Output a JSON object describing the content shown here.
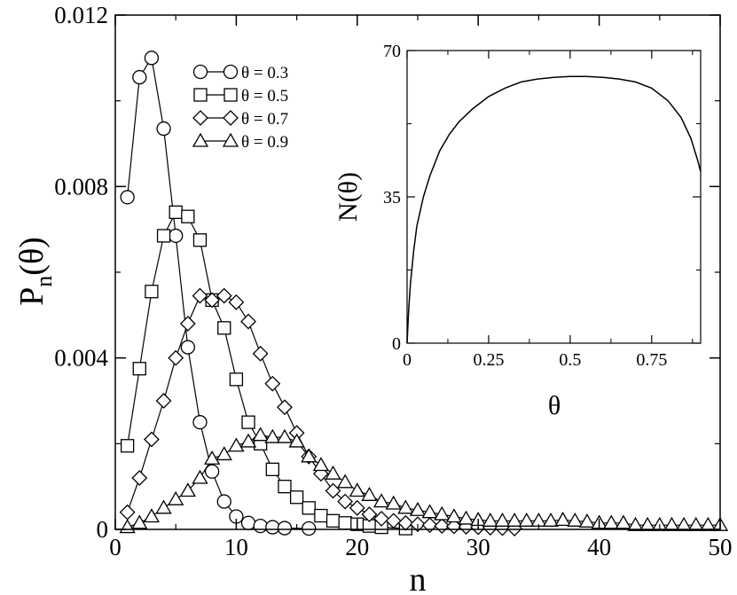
{
  "chart_data": [
    {
      "type": "line",
      "xlabel": "n",
      "ylabel": "P",
      "ylabel_sub": "n",
      "ylabel_arg": "(θ)",
      "xlim": [
        0,
        50
      ],
      "ylim": [
        0,
        0.012
      ],
      "xticks": [
        "0",
        "10",
        "20",
        "30",
        "40",
        "50"
      ],
      "yticks": [
        "0",
        "0.004",
        "0.008",
        "0.012"
      ],
      "grid": false,
      "legend_position": "top-center",
      "series": [
        {
          "name": "θ = 0.3",
          "marker": "circle",
          "x": [
            1,
            2,
            3,
            4,
            5,
            6,
            7,
            8,
            9,
            10,
            11,
            12,
            13,
            14,
            16
          ],
          "y": [
            0.00775,
            0.01055,
            0.011,
            0.00935,
            0.00685,
            0.00425,
            0.0025,
            0.00135,
            0.00065,
            0.0003,
            0.00015,
            8e-05,
            5e-05,
            3e-05,
            2e-05
          ]
        },
        {
          "name": "θ = 0.5",
          "marker": "square",
          "x": [
            1,
            2,
            3,
            4,
            5,
            6,
            7,
            8,
            9,
            10,
            11,
            12,
            13,
            14,
            15,
            16,
            17,
            18,
            19,
            20,
            21,
            22,
            24
          ],
          "y": [
            0.00195,
            0.00375,
            0.00555,
            0.00685,
            0.0074,
            0.0073,
            0.00675,
            0.00535,
            0.0047,
            0.0035,
            0.0025,
            0.002,
            0.0014,
            0.001,
            0.00075,
            0.0005,
            0.00032,
            0.0002,
            0.00015,
            0.00012,
            8e-05,
            5e-05,
            2e-05
          ]
        },
        {
          "name": "θ = 0.7",
          "marker": "diamond",
          "x": [
            1,
            2,
            3,
            4,
            5,
            6,
            7,
            8,
            9,
            10,
            11,
            12,
            13,
            14,
            15,
            16,
            17,
            18,
            19,
            20,
            21,
            22,
            23,
            24,
            25,
            26,
            27,
            28,
            29,
            30,
            31,
            32,
            33
          ],
          "y": [
            0.0004,
            0.0012,
            0.0021,
            0.003,
            0.004,
            0.0048,
            0.00545,
            0.00535,
            0.00545,
            0.0053,
            0.00485,
            0.0041,
            0.0034,
            0.00285,
            0.00225,
            0.0017,
            0.0013,
            0.0009,
            0.00065,
            0.0005,
            0.00035,
            0.00025,
            0.0002,
            0.00015,
            0.00012,
            0.0001,
            8e-05,
            7e-05,
            6e-05,
            5e-05,
            4e-05,
            3e-05,
            2e-05
          ]
        },
        {
          "name": "θ = 0.9",
          "marker": "triangle",
          "x": [
            1,
            2,
            3,
            4,
            5,
            6,
            7,
            8,
            9,
            10,
            11,
            12,
            13,
            14,
            15,
            16,
            17,
            18,
            19,
            20,
            21,
            22,
            23,
            24,
            25,
            26,
            27,
            28,
            29,
            30,
            31,
            32,
            33,
            34,
            35,
            36,
            37,
            38,
            39,
            40,
            41,
            42,
            43,
            44,
            45,
            46,
            47,
            48,
            49,
            50
          ],
          "y": [
            5e-05,
            0.00015,
            0.0003,
            0.0005,
            0.0007,
            0.0009,
            0.0012,
            0.00165,
            0.00175,
            0.00195,
            0.00205,
            0.0022,
            0.00215,
            0.00215,
            0.00205,
            0.0017,
            0.0015,
            0.0013,
            0.0011,
            0.0009,
            0.0008,
            0.00065,
            0.0006,
            0.0005,
            0.00045,
            0.0004,
            0.00035,
            0.0003,
            0.00025,
            0.00022,
            0.0002,
            0.0002,
            0.0002,
            0.0002,
            0.0002,
            0.0002,
            0.00022,
            0.0002,
            0.00018,
            0.00015,
            0.00015,
            0.00015,
            0.0001,
            0.0001,
            0.0001,
            0.0001,
            0.0001,
            0.0001,
            0.0001,
            0.0001
          ]
        }
      ]
    },
    {
      "type": "line",
      "xlabel": "θ",
      "ylabel": "N(θ)",
      "xlim": [
        0,
        0.9
      ],
      "ylim": [
        0,
        70
      ],
      "xticks": [
        "0",
        "0.25",
        "0.5",
        "0.75"
      ],
      "yticks": [
        "0",
        "35",
        "70"
      ],
      "grid": false,
      "series": [
        {
          "x": [
            0,
            0.005,
            0.01,
            0.02,
            0.03,
            0.05,
            0.07,
            0.1,
            0.13,
            0.16,
            0.2,
            0.25,
            0.3,
            0.35,
            0.4,
            0.45,
            0.5,
            0.55,
            0.6,
            0.65,
            0.7,
            0.75,
            0.8,
            0.84,
            0.87,
            0.89,
            0.9
          ],
          "y": [
            0,
            8,
            14,
            22,
            28,
            35,
            40,
            46,
            50,
            53,
            56,
            59,
            61,
            62.5,
            63.2,
            63.6,
            63.8,
            63.8,
            63.6,
            63.2,
            62.5,
            61,
            58,
            54,
            49,
            44,
            41
          ]
        }
      ]
    }
  ]
}
